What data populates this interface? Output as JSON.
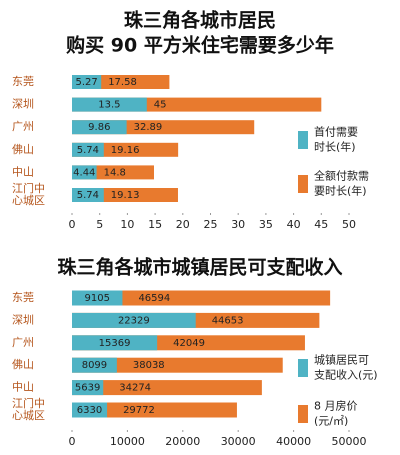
{
  "chart_data": [
    {
      "type": "bar",
      "title": "珠三角各城市居民\n购买 90 平方米住宅需要多少年",
      "categories": [
        "东莞",
        "深圳",
        "广州",
        "佛山",
        "中山",
        "江门中\n心城区"
      ],
      "series": [
        {
          "name": "首付需要\n时长(年)",
          "color": "#4fb3c4",
          "values": [
            5.27,
            13.5,
            9.86,
            5.74,
            4.44,
            5.74
          ]
        },
        {
          "name": "全额付款需\n要时长(年)",
          "color": "#e87a2e",
          "values": [
            17.58,
            45,
            32.89,
            19.16,
            14.8,
            19.13
          ]
        }
      ],
      "xlim": [
        0,
        50
      ],
      "xticks": [
        0,
        5,
        10,
        15,
        20,
        25,
        30,
        35,
        40,
        45,
        50
      ]
    },
    {
      "type": "bar",
      "title": "珠三角各城市城镇居民可支配收入",
      "categories": [
        "东莞",
        "深圳",
        "广州",
        "佛山",
        "中山",
        "江门中\n心城区"
      ],
      "series": [
        {
          "name": "城镇居民可\n支配收入(元)",
          "color": "#4fb3c4",
          "values": [
            9105,
            22329,
            15369,
            8099,
            5639,
            6330
          ]
        },
        {
          "name": "8 月房价\n(元/㎡)",
          "color": "#e87a2e",
          "values": [
            46594,
            44653,
            42049,
            38038,
            34274,
            29772
          ]
        }
      ],
      "xlim": [
        0,
        50000
      ],
      "xticks": [
        0,
        10000,
        20000,
        30000,
        40000,
        50000
      ]
    }
  ]
}
